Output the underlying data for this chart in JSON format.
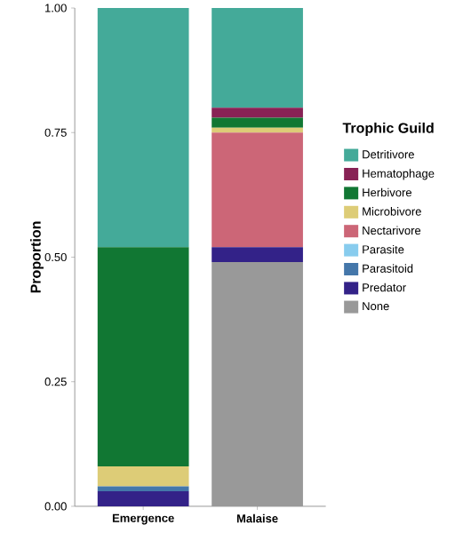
{
  "chart_data": {
    "type": "bar",
    "stacked": true,
    "ylabel": "Proportion",
    "legend_title": "Trophic Guild",
    "legend": "right",
    "categories": [
      "Emergence",
      "Malaise"
    ],
    "ylim": [
      0,
      1
    ],
    "yticks": [
      {
        "value": 0,
        "label": "0.00"
      },
      {
        "value": 0.25,
        "label": "0.25"
      },
      {
        "value": 0.5,
        "label": "0.50"
      },
      {
        "value": 0.75,
        "label": "0.75"
      },
      {
        "value": 1,
        "label": "1.00"
      }
    ],
    "series": [
      {
        "name": "None",
        "color": "#999999",
        "values": [
          0,
          0.49
        ]
      },
      {
        "name": "Predator",
        "color": "#332288",
        "values": [
          0.03,
          0.03
        ]
      },
      {
        "name": "Parasitoid",
        "color": "#4477aa",
        "values": [
          0.01,
          0
        ]
      },
      {
        "name": "Parasite",
        "color": "#88ccee",
        "values": [
          0,
          0
        ]
      },
      {
        "name": "Nectarivore",
        "color": "#cc6677",
        "values": [
          0,
          0.23
        ]
      },
      {
        "name": "Microbivore",
        "color": "#ddcc77",
        "values": [
          0.04,
          0.01
        ]
      },
      {
        "name": "Herbivore",
        "color": "#117733",
        "values": [
          0.44,
          0.02
        ]
      },
      {
        "name": "Hematophage",
        "color": "#882255",
        "values": [
          0,
          0.02
        ]
      },
      {
        "name": "Detritivore",
        "color": "#44aa99",
        "values": [
          0.48,
          0.2
        ]
      }
    ]
  }
}
